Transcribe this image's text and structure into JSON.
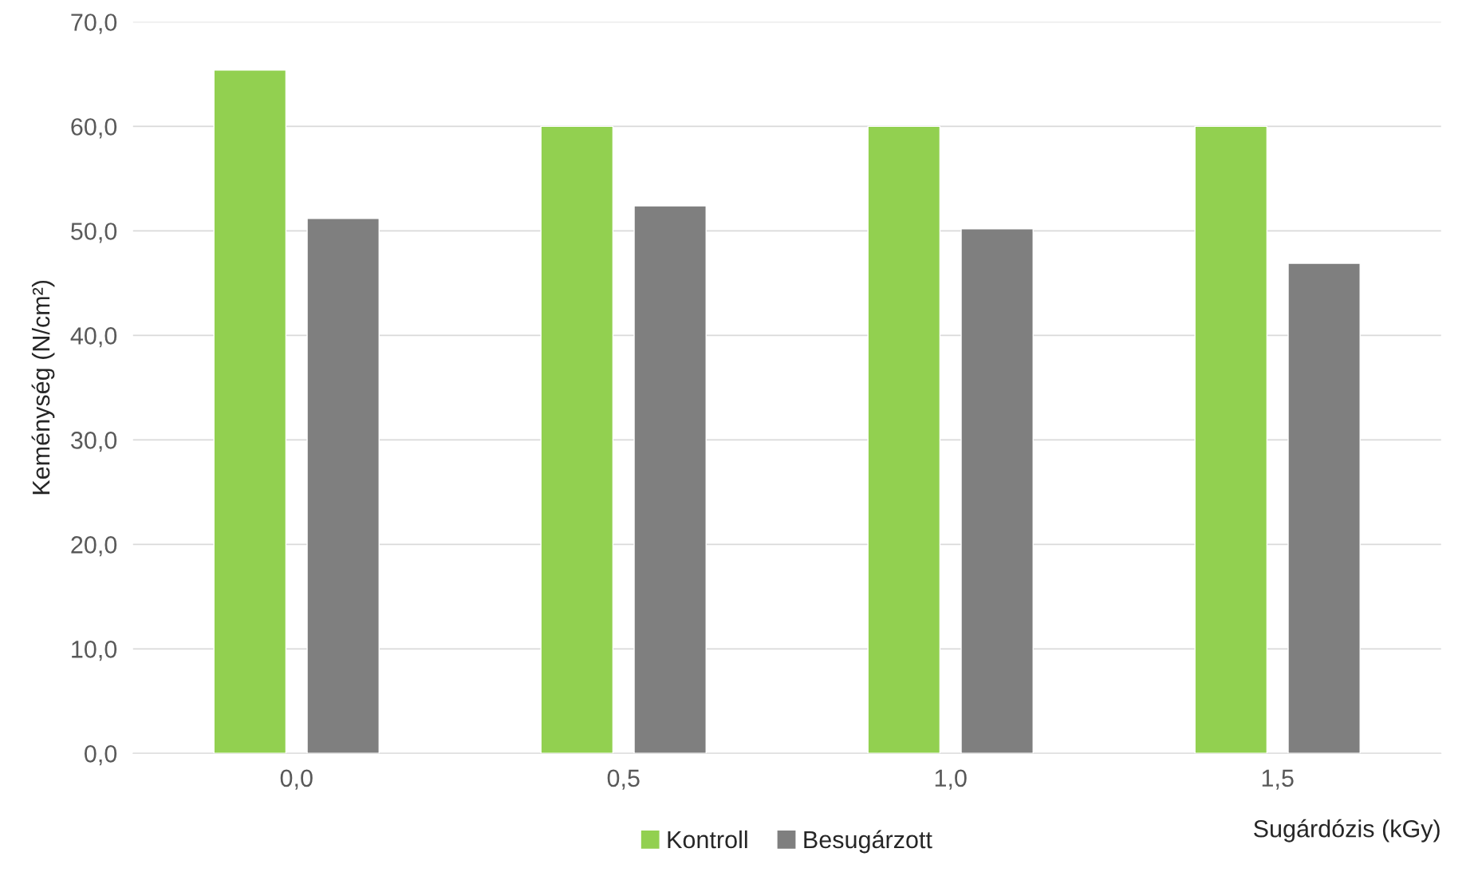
{
  "chart_data": {
    "type": "bar",
    "xlabel": "Sugárdózis (kGy)",
    "ylabel": "Keménység (N/cm²)",
    "categories": [
      "0,0",
      "0,5",
      "1,0",
      "1,5"
    ],
    "series": [
      {
        "name": "Kontroll",
        "color": "#92d050",
        "values": [
          65.4,
          60.0,
          60.0,
          60.0
        ]
      },
      {
        "name": "Besugárzott",
        "color": "#7f7f7f",
        "values": [
          51.2,
          52.4,
          50.2,
          46.9
        ]
      }
    ],
    "ylim": [
      0,
      70
    ],
    "yticks": [
      {
        "value": 0,
        "label": "0,0"
      },
      {
        "value": 10,
        "label": "10,0"
      },
      {
        "value": 20,
        "label": "20,0"
      },
      {
        "value": 30,
        "label": "30,0"
      },
      {
        "value": 40,
        "label": "40,0"
      },
      {
        "value": 50,
        "label": "50,0"
      },
      {
        "value": 60,
        "label": "60,0"
      },
      {
        "value": 70,
        "label": "70,0"
      }
    ],
    "grid": "y",
    "legend": "bottom"
  }
}
